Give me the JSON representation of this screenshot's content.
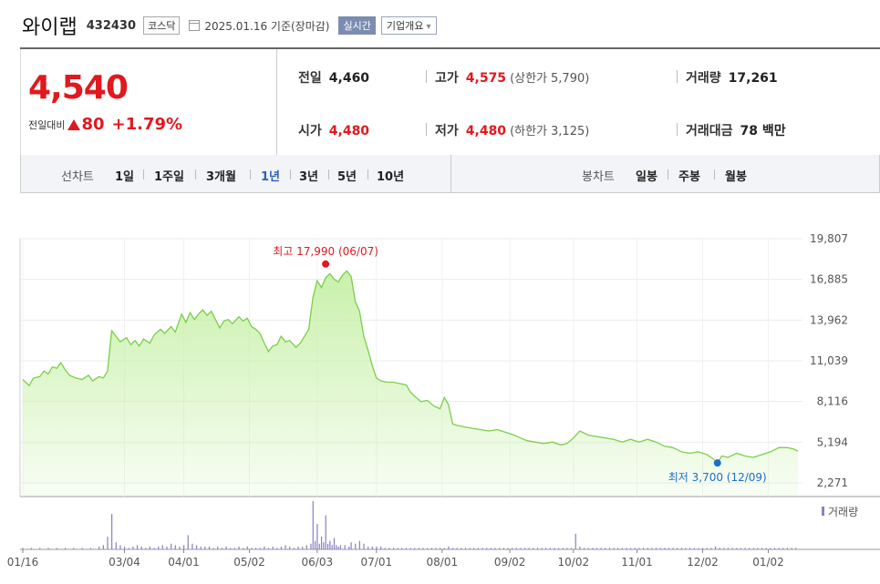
{
  "header": {
    "name": "와이랩",
    "code": "432430",
    "market": "코스닥",
    "date": "2025.01.16 기준(장마감)",
    "realtime": "실시간",
    "overview": "기업개요"
  },
  "quote": {
    "price": "4,540",
    "change_label": "전일대비",
    "change_amount": "80",
    "change_pct": "+1.79%",
    "prev_label": "전일",
    "prev": "4,460",
    "high_label": "고가",
    "high": "4,575",
    "upper_label": "(상한가",
    "upper": "5,790)",
    "volume_label": "거래량",
    "volume": "17,261",
    "open_label": "시가",
    "open": "4,480",
    "low_label": "저가",
    "low": "4,480",
    "lower_label": "(하한가",
    "lower": "3,125)",
    "amount_label": "거래대금",
    "amount": "78 백만"
  },
  "periods": {
    "line_title": "선차트",
    "line_items": [
      "1일",
      "1주일",
      "3개월",
      "1년",
      "3년",
      "5년",
      "10년"
    ],
    "selected": "1년",
    "candle_title": "봉차트",
    "candle_items": [
      "일봉",
      "주봉",
      "월봉"
    ]
  },
  "colors": {
    "up": "#e0191f",
    "line": "#7bcf4a",
    "fill": "#c6f0a6",
    "low_marker": "#1a6fc8",
    "volume": "#8a7fc2"
  },
  "chart_data": {
    "type": "area",
    "y_ticks": [
      "19,807",
      "16,885",
      "13,962",
      "11,039",
      "8,116",
      "5,194",
      "2,271"
    ],
    "ylim": [
      2271,
      19807
    ],
    "x_tick_labels": [
      "01/16",
      "03/04",
      "04/01",
      "05/02",
      "06/03",
      "07/01",
      "08/01",
      "09/02",
      "10/02",
      "11/01",
      "12/02",
      "01/02"
    ],
    "x_ticks_day": [
      0,
      48,
      76,
      107,
      139,
      167,
      198,
      230,
      260,
      290,
      321,
      352
    ],
    "x_max_day": 366,
    "high_annotation": "최고 17,990 (06/07)",
    "high": {
      "day": 143,
      "value": 17990
    },
    "low_annotation": "최저 3,700 (12/09)",
    "low": {
      "day": 328,
      "value": 3700
    },
    "volume_legend": "거래량",
    "price_series": [
      [
        0,
        9700
      ],
      [
        3,
        9250
      ],
      [
        5,
        9800
      ],
      [
        8,
        9900
      ],
      [
        10,
        10300
      ],
      [
        12,
        10100
      ],
      [
        14,
        10600
      ],
      [
        16,
        10500
      ],
      [
        18,
        10900
      ],
      [
        20,
        10400
      ],
      [
        22,
        10000
      ],
      [
        25,
        9800
      ],
      [
        28,
        9700
      ],
      [
        31,
        10000
      ],
      [
        33,
        9600
      ],
      [
        36,
        9900
      ],
      [
        38,
        9800
      ],
      [
        40,
        10300
      ],
      [
        42,
        13200
      ],
      [
        44,
        12800
      ],
      [
        46,
        12400
      ],
      [
        49,
        12700
      ],
      [
        51,
        12200
      ],
      [
        53,
        12500
      ],
      [
        55,
        12100
      ],
      [
        57,
        12600
      ],
      [
        60,
        12300
      ],
      [
        62,
        12900
      ],
      [
        65,
        13300
      ],
      [
        67,
        13000
      ],
      [
        70,
        13500
      ],
      [
        72,
        13100
      ],
      [
        75,
        14400
      ],
      [
        77,
        13800
      ],
      [
        79,
        14500
      ],
      [
        81,
        14000
      ],
      [
        83,
        14400
      ],
      [
        85,
        14700
      ],
      [
        87,
        14300
      ],
      [
        89,
        14600
      ],
      [
        91,
        14000
      ],
      [
        93,
        13400
      ],
      [
        95,
        13900
      ],
      [
        97,
        14000
      ],
      [
        99,
        13700
      ],
      [
        102,
        14200
      ],
      [
        104,
        13900
      ],
      [
        106,
        14100
      ],
      [
        108,
        13500
      ],
      [
        110,
        13300
      ],
      [
        112,
        13000
      ],
      [
        114,
        12300
      ],
      [
        116,
        11700
      ],
      [
        118,
        12100
      ],
      [
        120,
        12200
      ],
      [
        122,
        12800
      ],
      [
        124,
        12400
      ],
      [
        126,
        12500
      ],
      [
        129,
        12000
      ],
      [
        131,
        12300
      ],
      [
        133,
        12800
      ],
      [
        135,
        13300
      ],
      [
        137,
        15600
      ],
      [
        139,
        16800
      ],
      [
        141,
        16300
      ],
      [
        143,
        17000
      ],
      [
        145,
        17300
      ],
      [
        147,
        16900
      ],
      [
        149,
        16700
      ],
      [
        151,
        17200
      ],
      [
        153,
        17500
      ],
      [
        155,
        17100
      ],
      [
        157,
        15300
      ],
      [
        159,
        14600
      ],
      [
        161,
        12800
      ],
      [
        163,
        11800
      ],
      [
        165,
        10700
      ],
      [
        167,
        9800
      ],
      [
        169,
        9600
      ],
      [
        172,
        9500
      ],
      [
        175,
        9500
      ],
      [
        178,
        9400
      ],
      [
        181,
        9300
      ],
      [
        183,
        8800
      ],
      [
        185,
        8500
      ],
      [
        188,
        8100
      ],
      [
        191,
        8200
      ],
      [
        194,
        7800
      ],
      [
        197,
        7600
      ],
      [
        199,
        8400
      ],
      [
        201,
        7900
      ],
      [
        203,
        6500
      ],
      [
        205,
        6400
      ],
      [
        208,
        6300
      ],
      [
        212,
        6200
      ],
      [
        216,
        6100
      ],
      [
        220,
        6000
      ],
      [
        224,
        6100
      ],
      [
        228,
        5900
      ],
      [
        232,
        5700
      ],
      [
        235,
        5500
      ],
      [
        238,
        5300
      ],
      [
        242,
        5200
      ],
      [
        246,
        5100
      ],
      [
        250,
        5200
      ],
      [
        254,
        5000
      ],
      [
        257,
        5100
      ],
      [
        260,
        5500
      ],
      [
        263,
        6000
      ],
      [
        267,
        5700
      ],
      [
        271,
        5600
      ],
      [
        275,
        5500
      ],
      [
        279,
        5400
      ],
      [
        283,
        5200
      ],
      [
        287,
        5400
      ],
      [
        291,
        5200
      ],
      [
        295,
        5400
      ],
      [
        299,
        5200
      ],
      [
        303,
        4900
      ],
      [
        307,
        4800
      ],
      [
        311,
        4500
      ],
      [
        315,
        4400
      ],
      [
        319,
        4500
      ],
      [
        323,
        4300
      ],
      [
        326,
        4000
      ],
      [
        328,
        3700
      ],
      [
        330,
        4200
      ],
      [
        333,
        4100
      ],
      [
        337,
        4400
      ],
      [
        341,
        4200
      ],
      [
        345,
        4100
      ],
      [
        349,
        4300
      ],
      [
        353,
        4500
      ],
      [
        357,
        4800
      ],
      [
        361,
        4800
      ],
      [
        364,
        4700
      ],
      [
        366,
        4540
      ]
    ],
    "volume_series": [
      [
        0,
        1
      ],
      [
        4,
        1
      ],
      [
        8,
        1
      ],
      [
        12,
        1
      ],
      [
        16,
        1
      ],
      [
        20,
        1
      ],
      [
        24,
        1
      ],
      [
        28,
        1
      ],
      [
        32,
        1
      ],
      [
        36,
        2
      ],
      [
        38,
        3
      ],
      [
        40,
        9
      ],
      [
        42,
        25
      ],
      [
        44,
        5
      ],
      [
        46,
        3
      ],
      [
        48,
        2
      ],
      [
        50,
        1
      ],
      [
        52,
        2
      ],
      [
        54,
        3
      ],
      [
        56,
        2
      ],
      [
        58,
        1
      ],
      [
        60,
        2
      ],
      [
        62,
        1
      ],
      [
        64,
        2
      ],
      [
        66,
        3
      ],
      [
        68,
        2
      ],
      [
        70,
        4
      ],
      [
        72,
        3
      ],
      [
        74,
        2
      ],
      [
        76,
        3
      ],
      [
        78,
        10
      ],
      [
        80,
        4
      ],
      [
        82,
        3
      ],
      [
        84,
        2
      ],
      [
        86,
        2
      ],
      [
        88,
        2
      ],
      [
        90,
        1
      ],
      [
        92,
        2
      ],
      [
        94,
        1
      ],
      [
        96,
        2
      ],
      [
        98,
        1
      ],
      [
        100,
        1
      ],
      [
        102,
        2
      ],
      [
        104,
        1
      ],
      [
        106,
        2
      ],
      [
        108,
        1
      ],
      [
        110,
        1
      ],
      [
        112,
        1
      ],
      [
        114,
        2
      ],
      [
        116,
        1
      ],
      [
        118,
        2
      ],
      [
        120,
        1
      ],
      [
        122,
        2
      ],
      [
        124,
        3
      ],
      [
        126,
        2
      ],
      [
        128,
        1
      ],
      [
        130,
        2
      ],
      [
        132,
        2
      ],
      [
        134,
        3
      ],
      [
        136,
        4
      ],
      [
        137,
        34
      ],
      [
        138,
        6
      ],
      [
        139,
        18
      ],
      [
        140,
        4
      ],
      [
        141,
        9
      ],
      [
        142,
        5
      ],
      [
        143,
        24
      ],
      [
        144,
        4
      ],
      [
        145,
        6
      ],
      [
        146,
        3
      ],
      [
        147,
        8
      ],
      [
        148,
        3
      ],
      [
        149,
        2
      ],
      [
        150,
        3
      ],
      [
        152,
        3
      ],
      [
        154,
        2
      ],
      [
        155,
        5
      ],
      [
        157,
        4
      ],
      [
        159,
        6
      ],
      [
        161,
        4
      ],
      [
        163,
        2
      ],
      [
        165,
        2
      ],
      [
        167,
        2
      ],
      [
        169,
        2
      ],
      [
        171,
        1
      ],
      [
        173,
        1
      ],
      [
        175,
        1
      ],
      [
        177,
        1
      ],
      [
        179,
        1
      ],
      [
        181,
        1
      ],
      [
        183,
        1
      ],
      [
        185,
        1
      ],
      [
        187,
        1
      ],
      [
        189,
        1
      ],
      [
        191,
        1
      ],
      [
        193,
        1
      ],
      [
        195,
        1
      ],
      [
        197,
        1
      ],
      [
        199,
        1
      ],
      [
        201,
        2
      ],
      [
        203,
        1
      ],
      [
        205,
        1
      ],
      [
        207,
        1
      ],
      [
        209,
        1
      ],
      [
        211,
        1
      ],
      [
        213,
        1
      ],
      [
        215,
        1
      ],
      [
        217,
        1
      ],
      [
        219,
        1
      ],
      [
        221,
        1
      ],
      [
        223,
        1
      ],
      [
        225,
        1
      ],
      [
        227,
        1
      ],
      [
        229,
        1
      ],
      [
        231,
        1
      ],
      [
        233,
        1
      ],
      [
        235,
        1
      ],
      [
        237,
        1
      ],
      [
        239,
        1
      ],
      [
        241,
        1
      ],
      [
        243,
        1
      ],
      [
        245,
        1
      ],
      [
        247,
        1
      ],
      [
        249,
        1
      ],
      [
        251,
        1
      ],
      [
        253,
        1
      ],
      [
        255,
        1
      ],
      [
        257,
        1
      ],
      [
        259,
        1
      ],
      [
        261,
        11
      ],
      [
        263,
        2
      ],
      [
        265,
        1
      ],
      [
        267,
        1
      ],
      [
        269,
        1
      ],
      [
        271,
        1
      ],
      [
        273,
        1
      ],
      [
        275,
        1
      ],
      [
        277,
        1
      ],
      [
        279,
        1
      ],
      [
        281,
        1
      ],
      [
        283,
        1
      ],
      [
        285,
        1
      ],
      [
        287,
        1
      ],
      [
        289,
        1
      ],
      [
        291,
        1
      ],
      [
        293,
        1
      ],
      [
        295,
        1
      ],
      [
        297,
        1
      ],
      [
        299,
        1
      ],
      [
        301,
        1
      ],
      [
        303,
        1
      ],
      [
        305,
        1
      ],
      [
        307,
        1
      ],
      [
        309,
        1
      ],
      [
        311,
        1
      ],
      [
        313,
        1
      ],
      [
        315,
        1
      ],
      [
        317,
        1
      ],
      [
        319,
        1
      ],
      [
        321,
        1
      ],
      [
        323,
        1
      ],
      [
        325,
        1
      ],
      [
        327,
        2
      ],
      [
        329,
        1
      ],
      [
        331,
        1
      ],
      [
        333,
        1
      ],
      [
        335,
        1
      ],
      [
        337,
        1
      ],
      [
        339,
        1
      ],
      [
        341,
        1
      ],
      [
        343,
        1
      ],
      [
        345,
        1
      ],
      [
        347,
        1
      ],
      [
        349,
        1
      ],
      [
        351,
        1
      ],
      [
        353,
        1
      ],
      [
        355,
        1
      ],
      [
        357,
        1
      ],
      [
        359,
        1
      ],
      [
        361,
        1
      ],
      [
        363,
        1
      ],
      [
        365,
        1
      ]
    ]
  }
}
